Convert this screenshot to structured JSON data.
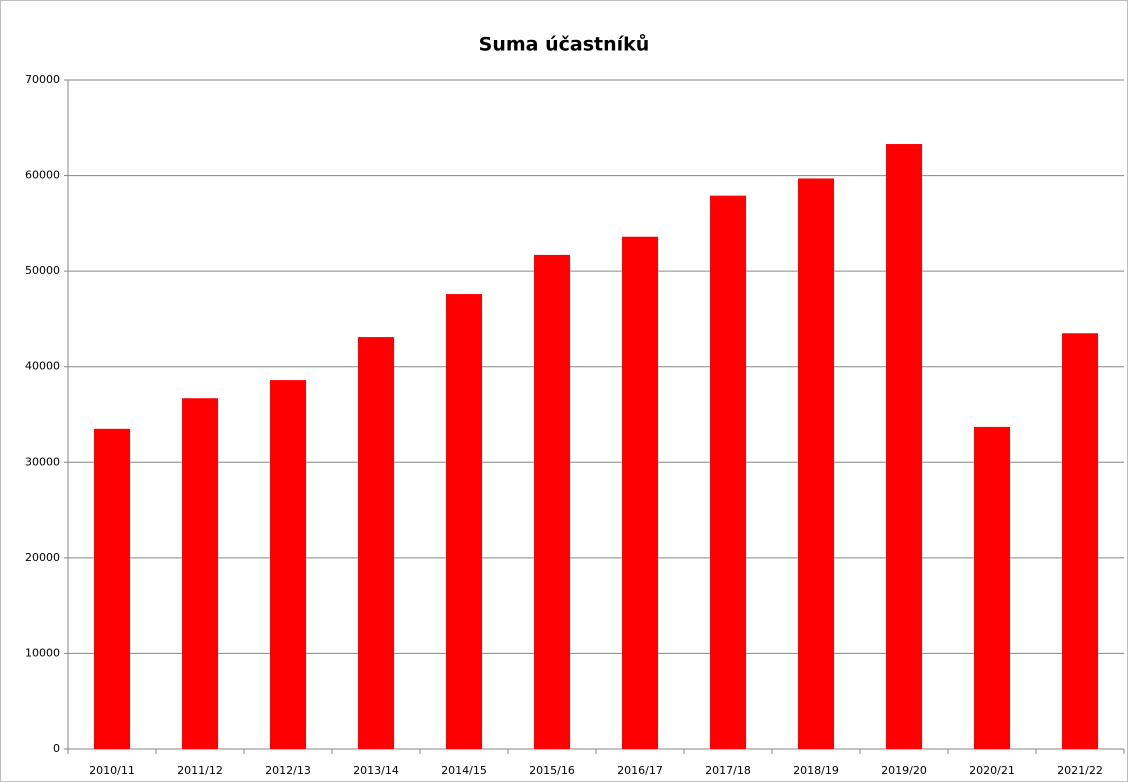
{
  "chart_data": {
    "type": "bar",
    "title": "Suma účastníků",
    "categories": [
      "2010/11",
      "2011/12",
      "2012/13",
      "2013/14",
      "2014/15",
      "2015/16",
      "2016/17",
      "2017/18",
      "2018/19",
      "2019/20",
      "2020/21",
      "2021/22"
    ],
    "values": [
      33500,
      36700,
      38600,
      43100,
      47600,
      51700,
      53600,
      57900,
      59700,
      63300,
      33700,
      43500
    ],
    "color": "#ff0000",
    "ylim": [
      0,
      70000
    ],
    "yticks": [
      0,
      10000,
      20000,
      30000,
      40000,
      50000,
      60000,
      70000
    ],
    "grid": true
  }
}
